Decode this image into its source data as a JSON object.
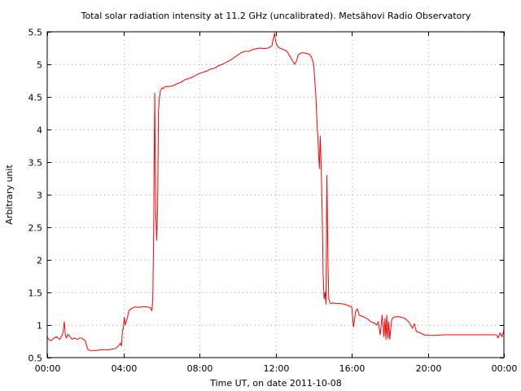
{
  "chart_data": {
    "type": "line",
    "title": "Total solar radiation intensity at 11.2 GHz (uncalibrated). Metsähovi Radio Observatory",
    "xlabel": "Time UT, on date 2011-10-08",
    "ylabel": "Arbitrary unit",
    "xlim": [
      0,
      24
    ],
    "ylim": [
      0.5,
      5.5
    ],
    "grid": true,
    "x_ticks": [
      0,
      4,
      8,
      12,
      16,
      20,
      24
    ],
    "x_tick_labels": [
      "00:00",
      "04:00",
      "08:00",
      "12:00",
      "16:00",
      "20:00",
      "00:00"
    ],
    "y_ticks": [
      0.5,
      1,
      1.5,
      2,
      2.5,
      3,
      3.5,
      4,
      4.5,
      5,
      5.5
    ],
    "y_tick_labels": [
      "0.5",
      "1",
      "1.5",
      "2",
      "2.5",
      "3",
      "3.5",
      "4",
      "4.5",
      "5",
      "5.5"
    ],
    "series": [
      {
        "color": "#ff0000",
        "x": [
          0.0,
          0.1,
          0.2,
          0.35,
          0.5,
          0.65,
          0.8,
          0.85,
          0.9,
          0.95,
          1.0,
          1.1,
          1.2,
          1.3,
          1.4,
          1.5,
          1.6,
          1.7,
          1.8,
          1.9,
          2.0,
          2.1,
          2.15,
          2.25,
          2.4,
          2.6,
          2.8,
          3.0,
          3.2,
          3.4,
          3.6,
          3.8,
          3.85,
          3.9,
          3.95,
          4.0,
          4.05,
          4.1,
          4.2,
          4.3,
          4.4,
          4.5,
          4.6,
          4.8,
          5.0,
          5.2,
          5.4,
          5.5,
          5.55,
          5.6,
          5.65,
          5.7,
          5.75,
          5.8,
          5.85,
          5.9,
          5.95,
          6.0,
          6.05,
          6.1,
          6.15,
          6.2,
          6.4,
          6.6,
          6.8,
          7.0,
          7.2,
          7.4,
          7.6,
          7.8,
          8.0,
          8.2,
          8.4,
          8.6,
          8.8,
          9.0,
          9.2,
          9.4,
          9.6,
          9.8,
          10.0,
          10.2,
          10.4,
          10.6,
          10.8,
          11.0,
          11.2,
          11.4,
          11.6,
          11.8,
          11.95,
          12.0,
          12.1,
          12.2,
          12.4,
          12.6,
          12.8,
          12.9,
          13.0,
          13.1,
          13.2,
          13.4,
          13.6,
          13.8,
          13.9,
          14.0,
          14.1,
          14.2,
          14.3,
          14.35,
          14.4,
          14.45,
          14.5,
          14.55,
          14.6,
          14.65,
          14.7,
          14.75,
          14.8,
          14.85,
          14.9,
          15.0,
          15.2,
          15.4,
          15.6,
          15.8,
          16.0,
          16.1,
          16.2,
          16.3,
          16.4,
          16.6,
          16.8,
          17.0,
          17.2,
          17.3,
          17.4,
          17.5,
          17.6,
          17.7,
          17.75,
          17.8,
          17.85,
          17.9,
          17.95,
          18.0,
          18.1,
          18.2,
          18.4,
          18.6,
          18.8,
          19.0,
          19.2,
          19.3,
          19.4,
          19.6,
          19.8,
          20.0,
          20.4,
          20.8,
          21.2,
          21.6,
          22.0,
          22.4,
          22.8,
          23.2,
          23.6,
          23.7,
          23.8,
          23.9,
          24.0
        ],
        "y": [
          0.82,
          0.77,
          0.76,
          0.8,
          0.82,
          0.78,
          0.85,
          0.93,
          1.05,
          0.85,
          0.8,
          0.86,
          0.82,
          0.78,
          0.8,
          0.79,
          0.78,
          0.8,
          0.8,
          0.78,
          0.76,
          0.65,
          0.62,
          0.61,
          0.61,
          0.61,
          0.62,
          0.62,
          0.62,
          0.63,
          0.64,
          0.7,
          0.72,
          0.68,
          0.9,
          0.95,
          1.12,
          1.0,
          1.1,
          1.22,
          1.25,
          1.26,
          1.28,
          1.27,
          1.28,
          1.28,
          1.27,
          1.22,
          1.4,
          2.6,
          4.56,
          2.8,
          2.3,
          2.8,
          4.3,
          4.5,
          4.6,
          4.62,
          4.64,
          4.63,
          4.65,
          4.66,
          4.66,
          4.67,
          4.7,
          4.72,
          4.76,
          4.78,
          4.8,
          4.83,
          4.86,
          4.88,
          4.9,
          4.93,
          4.94,
          4.98,
          5.0,
          5.03,
          5.06,
          5.1,
          5.14,
          5.18,
          5.2,
          5.2,
          5.23,
          5.24,
          5.25,
          5.24,
          5.25,
          5.28,
          5.48,
          5.35,
          5.28,
          5.25,
          5.23,
          5.2,
          5.1,
          5.05,
          5.0,
          5.05,
          5.15,
          5.18,
          5.17,
          5.15,
          5.1,
          5.0,
          4.6,
          4.0,
          3.4,
          3.9,
          3.4,
          2.7,
          1.8,
          1.4,
          1.5,
          1.32,
          3.3,
          2.0,
          1.4,
          1.35,
          1.33,
          1.34,
          1.33,
          1.33,
          1.32,
          1.3,
          1.28,
          0.97,
          1.2,
          1.25,
          1.15,
          1.13,
          1.1,
          1.05,
          1.03,
          1.0,
          1.05,
          0.85,
          1.15,
          0.82,
          1.1,
          0.78,
          1.15,
          0.8,
          1.05,
          0.78,
          1.08,
          1.12,
          1.13,
          1.12,
          1.1,
          1.05,
          0.95,
          1.02,
          0.9,
          0.88,
          0.85,
          0.84,
          0.84,
          0.85,
          0.85,
          0.85,
          0.85,
          0.85,
          0.85,
          0.85,
          0.85,
          0.8,
          0.88,
          0.82,
          0.92
        ]
      }
    ]
  }
}
